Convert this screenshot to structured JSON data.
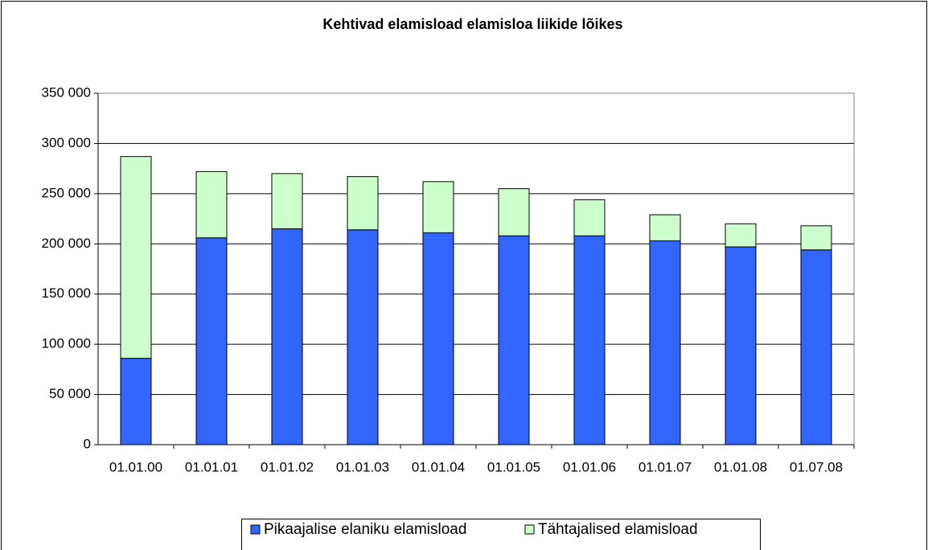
{
  "chart_data": {
    "type": "stacked_bar",
    "title": "Kehtivad elamisload elamisloa liikide lõikes",
    "categories": [
      "01.01.00",
      "01.01.01",
      "01.01.02",
      "01.01.03",
      "01.01.04",
      "01.01.05",
      "01.01.06",
      "01.01.07",
      "01.01.08",
      "01.07.08"
    ],
    "series": [
      {
        "name": "Pikaajalise elaniku elamisload",
        "color": "#3366ff",
        "values": [
          86000,
          206000,
          215000,
          214000,
          211000,
          208000,
          208000,
          203000,
          197000,
          194000
        ]
      },
      {
        "name": "Tähtajalised elamisload",
        "color": "#ccffcc",
        "values": [
          201000,
          66000,
          55000,
          53000,
          51000,
          47000,
          36000,
          26000,
          23000,
          24000
        ]
      }
    ],
    "ylim": [
      0,
      350000
    ],
    "yticks": [
      0,
      {
        "value": 50000,
        "label": "50 000"
      },
      {
        "value": 100000,
        "label": "100 000"
      },
      {
        "value": 150000,
        "label": "150 000"
      },
      {
        "value": 200000,
        "label": "200 000"
      },
      {
        "value": 250000,
        "label": "250 000"
      },
      {
        "value": 300000,
        "label": "300 000"
      },
      {
        "value": 350000,
        "label": "350 000"
      }
    ],
    "grid": true,
    "legend": "bottom"
  }
}
